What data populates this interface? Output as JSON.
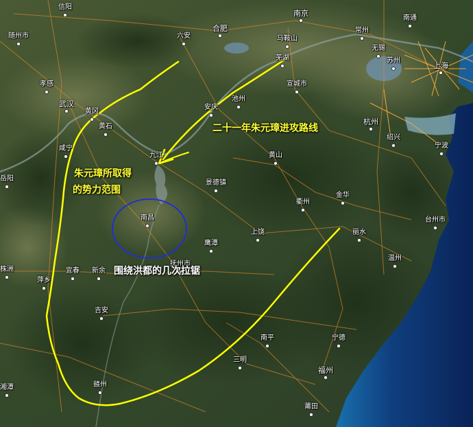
{
  "map": {
    "annotations": {
      "campaign_route": "二十一年朱元璋进攻路线",
      "territory_line1": "朱元璋所取得",
      "territory_line2": "的势力范围",
      "hongdu_battles": "围绕洪都的几次拉锯"
    },
    "cities": {
      "xinyang": "信阳",
      "nanjing": "南京",
      "nantong": "南通",
      "suizhou": "随州市",
      "luan": "六安",
      "hefei": "合肥",
      "maanshan": "马鞍山",
      "changzhou": "常州",
      "wuhu": "芜湖",
      "wuxi": "无锡",
      "suzhou": "苏州",
      "shanghai": "上海",
      "xiaogan": "孝感",
      "xuancheng": "宣城市",
      "wuhan": "武汉",
      "huanggang": "黄冈",
      "anqing": "安庆",
      "chizhou": "池州",
      "huangshi": "黄石",
      "hangzhou": "杭州",
      "shaoxing": "绍兴",
      "xianning": "咸宁",
      "jiujiang": "九江",
      "huangshan": "黄山",
      "ningbo": "宁波",
      "yueyang": "岳阳",
      "jingdezhen": "景德镇",
      "quzhou": "衢州",
      "jinhua": "金华",
      "nanchang": "南昌",
      "shangrao": "上饶",
      "yingtan": "鹰潭",
      "lishui": "丽水",
      "taizhou": "台州市",
      "zhuzhou": "株洲",
      "yichun": "宜春",
      "xinyu": "新余",
      "fuzhou_jx": "抚州市",
      "wenzhou": "温州",
      "pingxiang": "萍乡",
      "jian": "吉安",
      "nanping": "南平",
      "ningde": "宁德",
      "sanming": "三明",
      "fuzhou": "福州",
      "ganzhou": "赣州",
      "putian": "莆田",
      "xiangtan": "湘潭"
    },
    "colors": {
      "route_line": "#ffff00",
      "circle_line": "#2030d0",
      "label_yellow": "#ffff33",
      "label_white": "#ffffff"
    }
  }
}
